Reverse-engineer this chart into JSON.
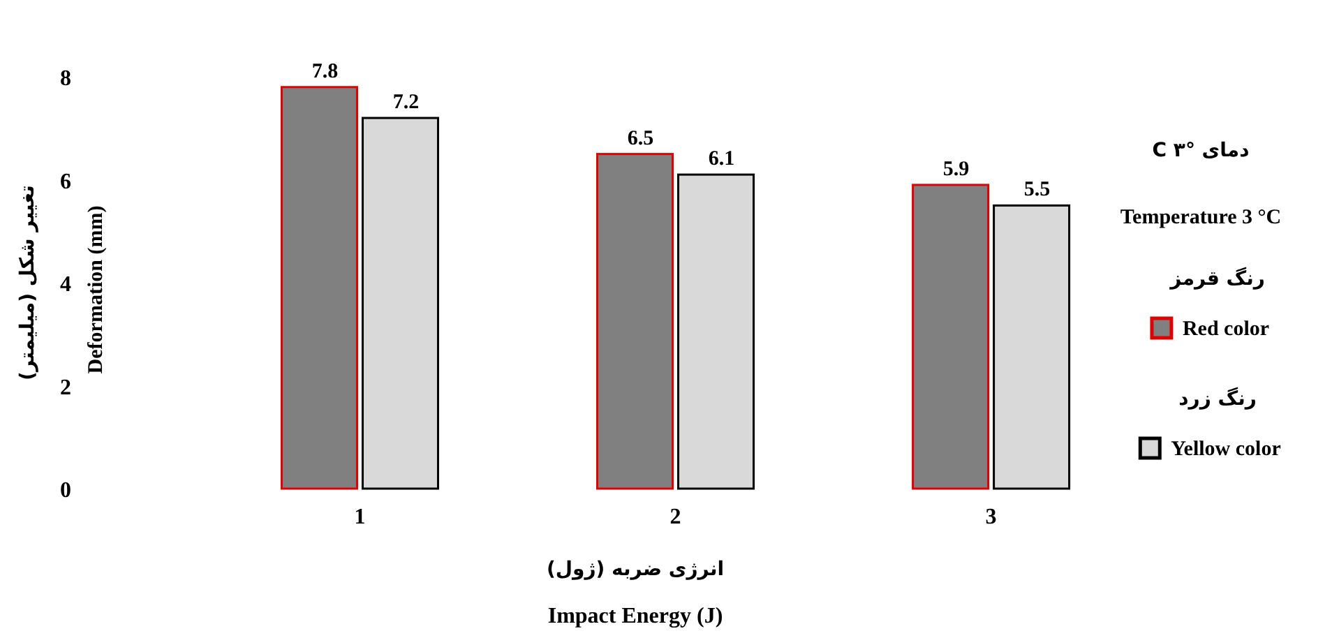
{
  "chart_data": {
    "type": "bar",
    "categories": [
      "1",
      "2",
      "3"
    ],
    "series": [
      {
        "name": "Red color",
        "color": "#808080",
        "values": [
          7.8,
          6.5,
          5.9
        ]
      },
      {
        "name": "Yellow color",
        "color": "#d9d9d9",
        "values": [
          7.2,
          6.1,
          5.5
        ]
      }
    ],
    "xlabel": "Impact Energy (J)",
    "ylabel": "Deformation (mm)",
    "legend_title": "Temperature 3 °C",
    "annotations": [
      "دمای °C ۳",
      "رنگ قرمز",
      "رنگ زرد",
      "تغییر شکل (میلیمتر)",
      "انرژی ضربه (ژول)"
    ],
    "ylim": [
      0,
      8
    ],
    "yticks": [
      0,
      2,
      4,
      6,
      8
    ],
    "data_labels": true,
    "legend": "right"
  }
}
